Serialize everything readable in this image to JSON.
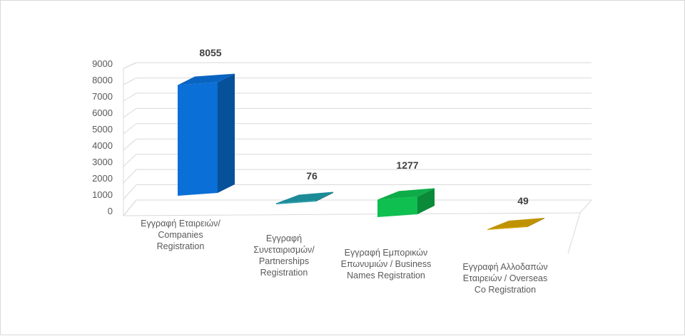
{
  "chart_data": {
    "type": "bar",
    "style": "3d-perspective",
    "categories": [
      [
        "Εγγραφή Εταιρειών/",
        "Companies",
        "Registration"
      ],
      [
        "Εγγραφή",
        "Συνεταιρισμών/",
        "Partnerships",
        "Registration"
      ],
      [
        "Εγγραφή Εμπορικών",
        "Επωνυμιών / Business",
        "Names Registration"
      ],
      [
        "Εγγραφή Αλλοδαπών",
        "Εταιρειών / Overseas",
        "Co Registration"
      ]
    ],
    "values": [
      8055,
      76,
      1277,
      49
    ],
    "data_labels": [
      "8055",
      "76",
      "1277",
      "49"
    ],
    "y_ticks": [
      "0",
      "1000",
      "2000",
      "3000",
      "4000",
      "5000",
      "6000",
      "7000",
      "8000",
      "9000"
    ],
    "ylim": [
      0,
      9000
    ],
    "grid": true,
    "legend": "none",
    "colors": [
      "#0a6fd6",
      "#1f9aa8",
      "#0fbf50",
      "#d4a300"
    ]
  }
}
